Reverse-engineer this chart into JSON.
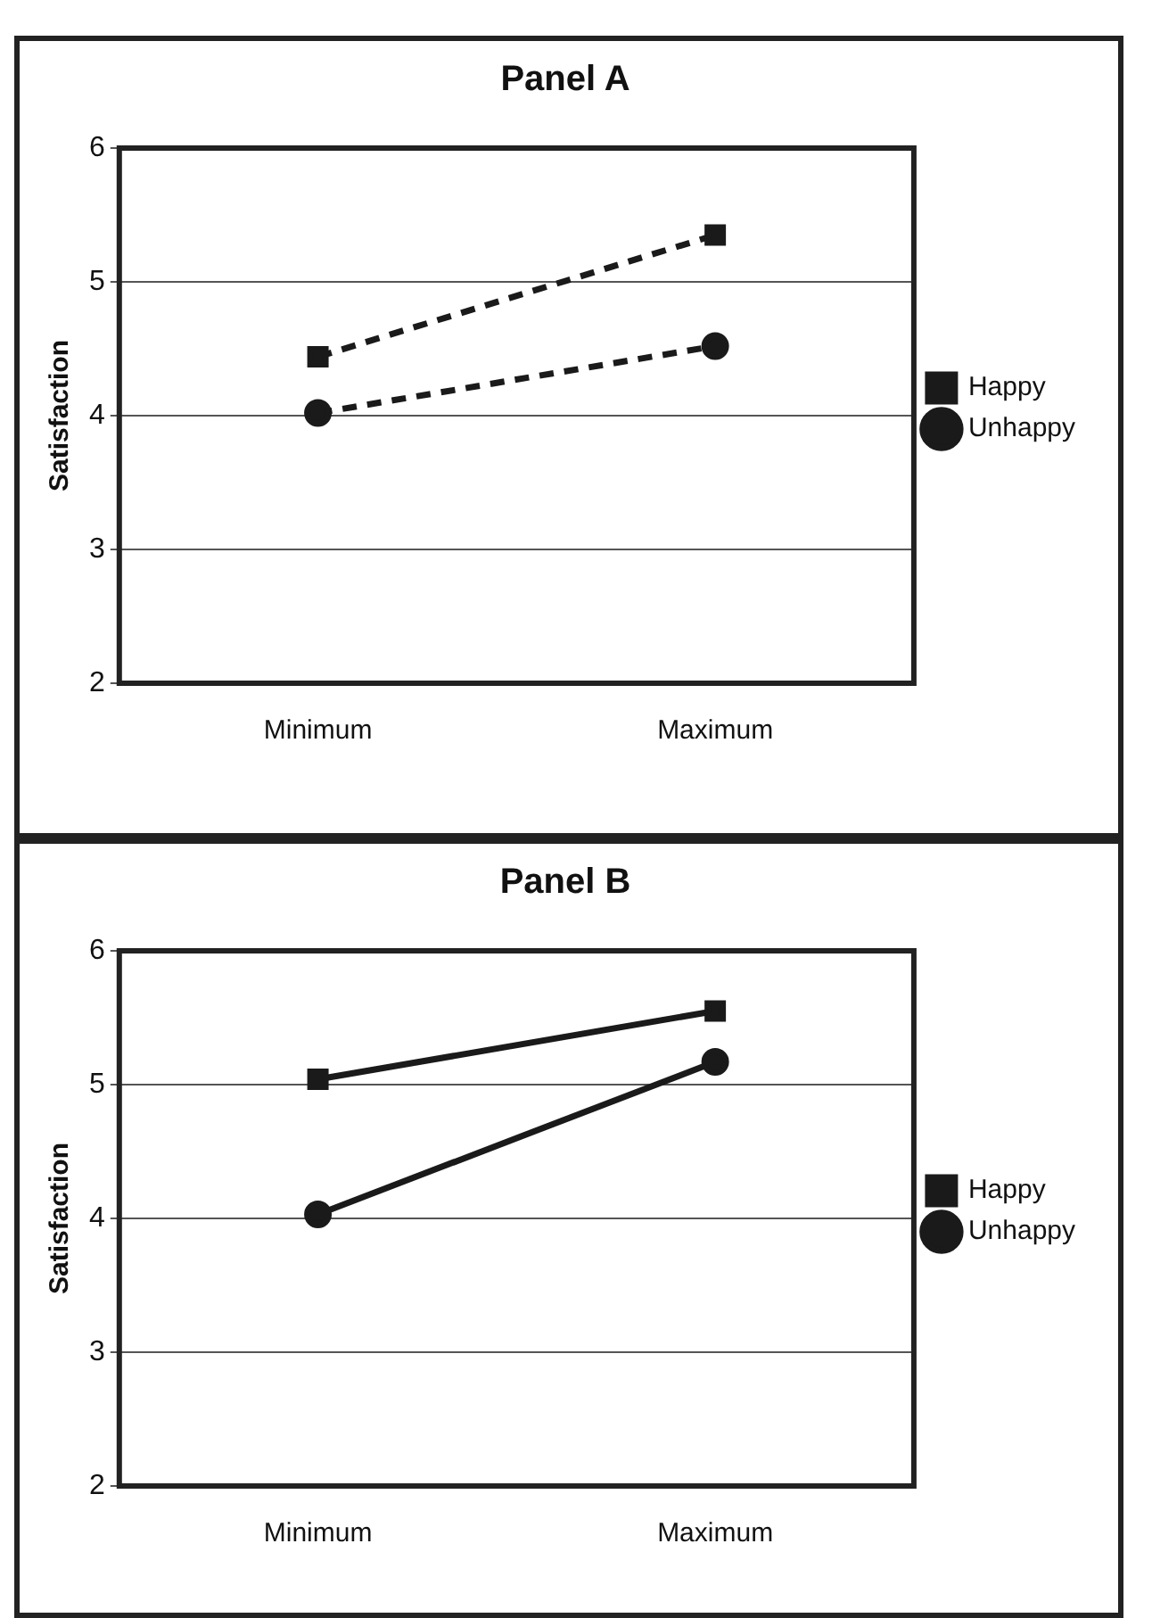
{
  "chart_data": [
    {
      "type": "line",
      "title": "Panel A",
      "ylabel": "Satisfaction",
      "categories": [
        "Minimum",
        "Maximum"
      ],
      "series": [
        {
          "name": "Happy",
          "color": "#1a1a1a",
          "values": [
            4.44,
            5.35
          ],
          "marker": "square"
        },
        {
          "name": "Unhappy",
          "color": "#1a1a1a",
          "values": [
            4.02,
            4.52
          ],
          "marker": "circle"
        }
      ],
      "ylim": [
        2,
        6
      ],
      "yticks": [
        2,
        3,
        4,
        5,
        6
      ],
      "grid": "y",
      "legend": "right",
      "line_style": "dashed"
    },
    {
      "type": "line",
      "title": "Panel B",
      "ylabel": "Satisfaction",
      "categories": [
        "Minimum",
        "Maximum"
      ],
      "series": [
        {
          "name": "Happy",
          "color": "#1a1a1a",
          "values": [
            5.04,
            5.55
          ],
          "marker": "square"
        },
        {
          "name": "Unhappy",
          "color": "#1a1a1a",
          "values": [
            4.03,
            5.17
          ],
          "marker": "circle"
        }
      ],
      "ylim": [
        2,
        6
      ],
      "yticks": [
        2,
        3,
        4,
        5,
        6
      ],
      "grid": "y",
      "legend": "right",
      "line_style": "solid"
    }
  ]
}
